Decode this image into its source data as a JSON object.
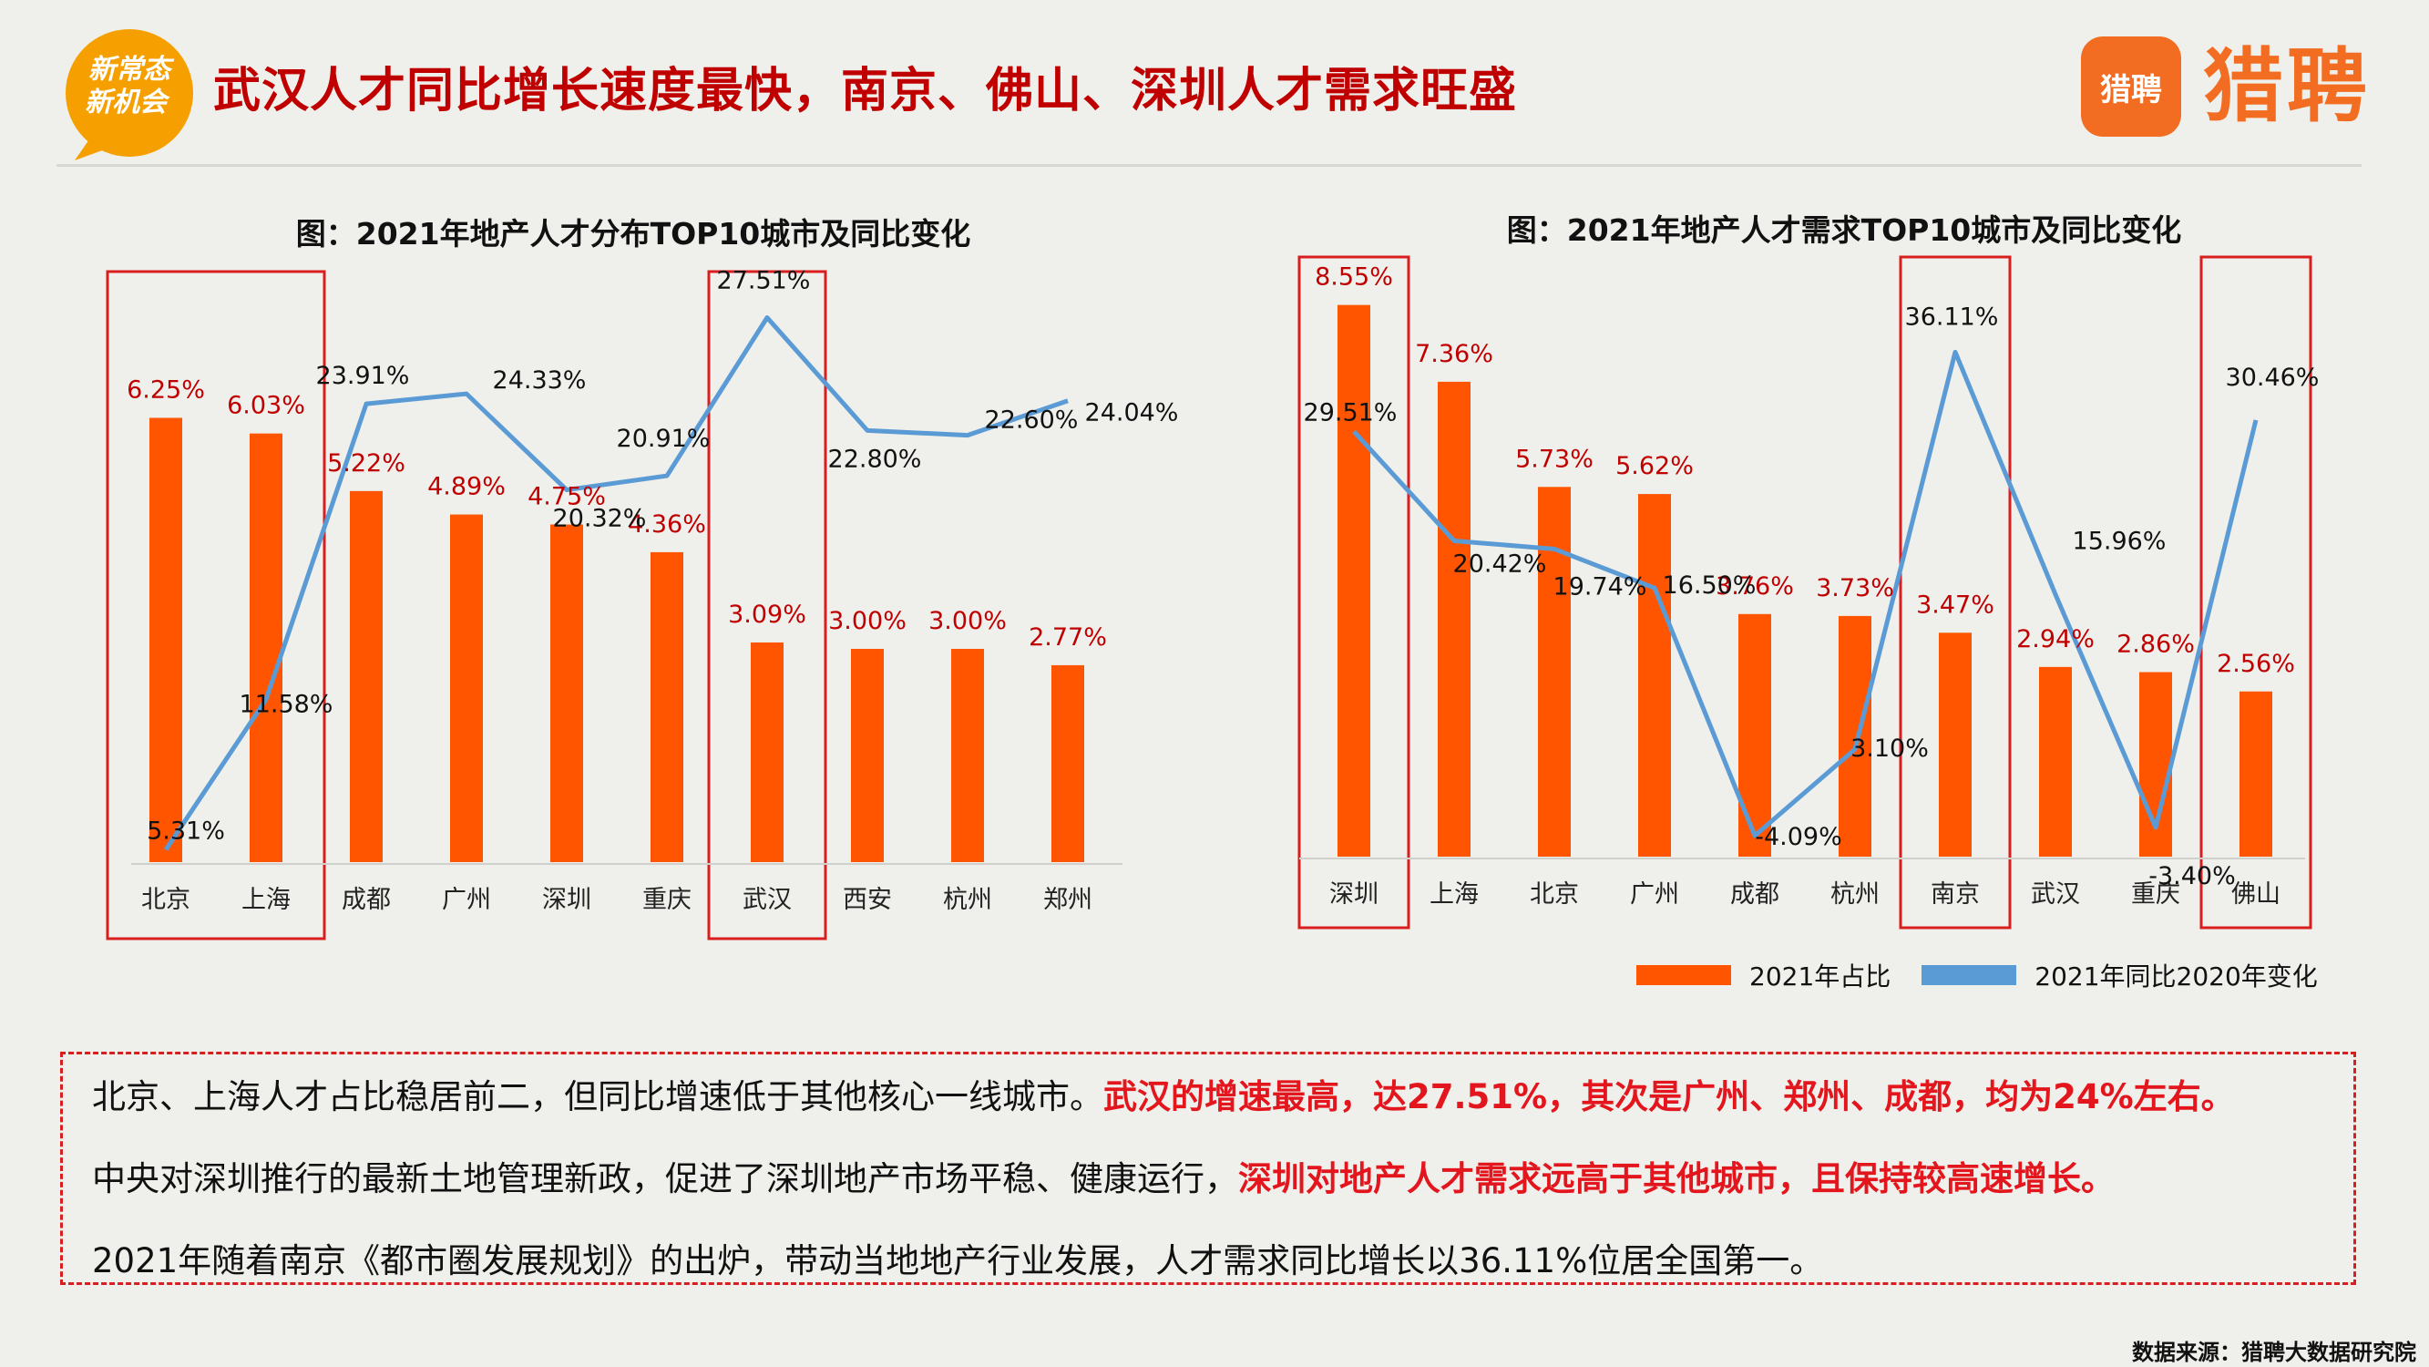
{
  "header": {
    "badge_line1": "新常态",
    "badge_line2": "新机会",
    "title": "武汉人才同比增长速度最快，南京、佛山、深圳人才需求旺盛",
    "logo_icon_text": "猎聘",
    "logo_word": "猎聘"
  },
  "colors": {
    "bar": "#ff5500",
    "line": "#5b9bd5",
    "highlight_box": "#d81e1e",
    "title_red": "#c00000"
  },
  "chart_data": [
    {
      "type": "bar",
      "title": "图：2021年地产人才分布TOP10城市及同比变化",
      "categories": [
        "北京",
        "上海",
        "成都",
        "广州",
        "深圳",
        "重庆",
        "武汉",
        "西安",
        "杭州",
        "郑州"
      ],
      "series": [
        {
          "name": "2021年占比",
          "type": "bar",
          "values": [
            6.25,
            6.03,
            5.22,
            4.89,
            4.75,
            4.36,
            3.09,
            3.0,
            3.0,
            2.77
          ],
          "labels": [
            "6.25%",
            "6.03%",
            "5.22%",
            "4.89%",
            "4.75%",
            "4.36%",
            "3.09%",
            "3.00%",
            "3.00%",
            "2.77%"
          ]
        },
        {
          "name": "2021年同比2020年变化",
          "type": "line",
          "values": [
            5.31,
            11.58,
            23.91,
            24.33,
            20.32,
            20.91,
            27.51,
            22.8,
            22.6,
            24.04
          ],
          "labels": [
            "5.31%",
            "11.58%",
            "23.91%",
            "24.33%",
            "20.32%",
            "20.91%",
            "27.51%",
            "22.80%",
            "22.60%",
            "24.04%"
          ]
        }
      ],
      "highlight_groups": [
        [
          0,
          1
        ],
        [
          6,
          6
        ]
      ]
    },
    {
      "type": "bar",
      "title": "图：2021年地产人才需求TOP10城市及同比变化",
      "categories": [
        "深圳",
        "上海",
        "北京",
        "广州",
        "成都",
        "杭州",
        "南京",
        "武汉",
        "重庆",
        "佛山"
      ],
      "series": [
        {
          "name": "2021年占比",
          "type": "bar",
          "values": [
            8.55,
            7.36,
            5.73,
            5.62,
            3.76,
            3.73,
            3.47,
            2.94,
            2.86,
            2.56
          ],
          "labels": [
            "8.55%",
            "7.36%",
            "5.73%",
            "5.62%",
            "3.76%",
            "3.73%",
            "3.47%",
            "2.94%",
            "2.86%",
            "2.56%"
          ]
        },
        {
          "name": "2021年同比2020年变化",
          "type": "line",
          "values": [
            29.51,
            20.42,
            19.74,
            16.5,
            -4.09,
            3.1,
            36.11,
            15.96,
            -3.4,
            30.46
          ],
          "labels": [
            "29.51%",
            "20.42%",
            "19.74%",
            "16.50%",
            "-4.09%",
            "3.10%",
            "36.11%",
            "15.96%",
            "-3.40%",
            "30.46%"
          ]
        }
      ],
      "highlight_groups": [
        [
          0,
          0
        ],
        [
          6,
          6
        ],
        [
          9,
          9
        ]
      ],
      "legend": {
        "position": "bottom",
        "items": [
          "2021年占比",
          "2021年同比2020年变化"
        ]
      }
    }
  ],
  "summary": {
    "line1_normal": "北京、上海人才占比稳居前二，但同比增速低于其他核心一线城市。",
    "line1_bold": "武汉的增速最高，达27.51%，其次是广州、郑州、成都，均为24%左右。",
    "line2_normal": "中央对深圳推行的最新土地管理新政，促进了深圳地产市场平稳、健康运行，",
    "line2_bold": "深圳对地产人才需求远高于其他城市，且保持较高速增长。",
    "line3_normal": "2021年随着南京《都市圈发展规划》的出炉，带动当地地产行业发展，人才需求同比增长以36.11%位居全国第一。"
  },
  "footer": {
    "source": "数据来源：猎聘大数据研究院"
  }
}
